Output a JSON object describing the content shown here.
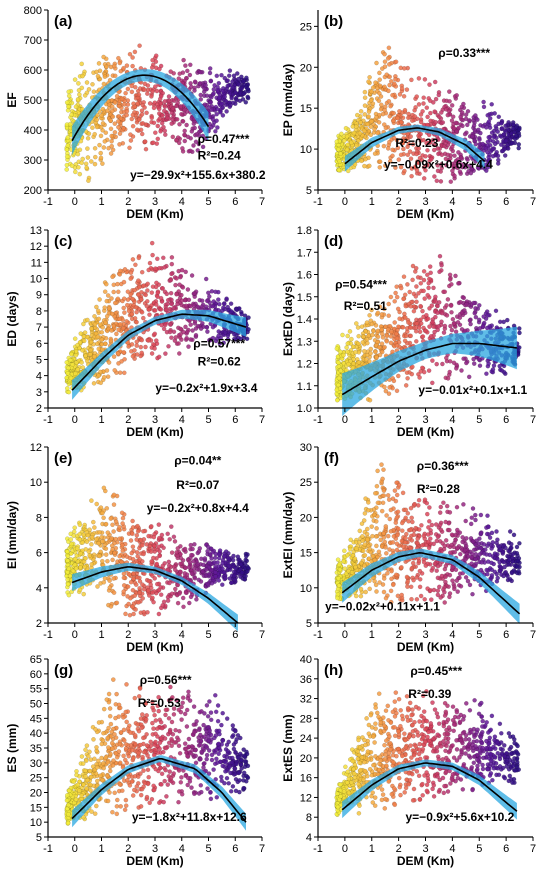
{
  "figure": {
    "colors": {
      "scatter_gradient": [
        "#f2ee3a",
        "#f6b53e",
        "#f07a4a",
        "#d9445c",
        "#a0287c",
        "#5a189a",
        "#2a0f80"
      ],
      "ci_band": "#2aa7e0",
      "fit_line": "#000000",
      "axis": "#000000"
    }
  },
  "chart_data": [
    {
      "type": "scatter",
      "panel_label": "(a)",
      "xlabel": "DEM (Km)",
      "ylabel": "EF",
      "xlim": [
        -1,
        7
      ],
      "ylim": [
        200,
        800
      ],
      "xticks": [
        -1,
        0,
        1,
        2,
        3,
        4,
        5,
        6,
        7
      ],
      "yticks": [
        200,
        300,
        400,
        500,
        600,
        700,
        800
      ],
      "annotations": [
        "ρ=0.47***",
        "R²=0.24",
        "y=−29.9x²+155.6x+380.2"
      ],
      "fit": {
        "a": -29.9,
        "b": 155.6,
        "c": 380.2,
        "x_range": [
          -0.1,
          5.0
        ],
        "band_half_width": 20
      },
      "scatter_summary": {
        "x_range": [
          -0.3,
          6.5
        ],
        "lower_envelope": [
          [
            -0.3,
            260
          ],
          [
            0.5,
            220
          ],
          [
            1.5,
            320
          ],
          [
            3,
            330
          ],
          [
            4.5,
            300
          ],
          [
            6,
            480
          ]
        ],
        "upper_envelope": [
          [
            -0.3,
            560
          ],
          [
            0.5,
            660
          ],
          [
            1.5,
            690
          ],
          [
            2.5,
            690
          ],
          [
            4,
            650
          ],
          [
            5,
            620
          ],
          [
            6.5,
            590
          ]
        ]
      }
    },
    {
      "type": "scatter",
      "panel_label": "(b)",
      "xlabel": "DEM (Km)",
      "ylabel": "EP (mm/day)",
      "xlim": [
        -1,
        7
      ],
      "ylim": [
        5,
        27
      ],
      "xticks": [
        -1,
        0,
        1,
        2,
        3,
        4,
        5,
        6,
        7
      ],
      "yticks": [
        5,
        10,
        15,
        20,
        25
      ],
      "annotations": [
        "ρ=0.33***",
        "R²=0.23",
        "y=−0.09x²+0.6x+4.4"
      ],
      "fit": {
        "curve_points": [
          [
            0,
            8.2
          ],
          [
            1,
            10.8
          ],
          [
            2,
            12.3
          ],
          [
            2.7,
            12.6
          ],
          [
            3.5,
            12.1
          ],
          [
            4.5,
            10.5
          ],
          [
            5.2,
            8.5
          ]
        ],
        "band_half_width": 0.4
      },
      "scatter_summary": {
        "x_range": [
          -0.3,
          6.5
        ],
        "lower_envelope": [
          [
            -0.3,
            7
          ],
          [
            1,
            7
          ],
          [
            2,
            5.5
          ],
          [
            3,
            5.5
          ],
          [
            4,
            5.5
          ],
          [
            5,
            6
          ],
          [
            6.4,
            10
          ]
        ],
        "upper_envelope": [
          [
            -0.3,
            12
          ],
          [
            0.5,
            15
          ],
          [
            1.5,
            26
          ],
          [
            2.5,
            20
          ],
          [
            4,
            18
          ],
          [
            5.5,
            16
          ],
          [
            6.5,
            13
          ]
        ]
      }
    },
    {
      "type": "scatter",
      "panel_label": "(c)",
      "xlabel": "DEM (Km)",
      "ylabel": "ED (days)",
      "xlim": [
        -1,
        7
      ],
      "ylim": [
        2,
        13
      ],
      "xticks": [
        -1,
        0,
        1,
        2,
        3,
        4,
        5,
        6,
        7
      ],
      "yticks": [
        2,
        3,
        4,
        5,
        6,
        7,
        8,
        9,
        10,
        11,
        12,
        13
      ],
      "annotations": [
        "ρ=0.57***",
        "R²=0.62",
        "y=−0.2x²+1.9x+3.4"
      ],
      "fit": {
        "curve_points": [
          [
            -0.1,
            3.1
          ],
          [
            1,
            5.0
          ],
          [
            2,
            6.5
          ],
          [
            3,
            7.4
          ],
          [
            4,
            7.8
          ],
          [
            5,
            7.7
          ],
          [
            6.4,
            7.0
          ]
        ],
        "band_half_width": 0.25
      },
      "scatter_summary": {
        "x_range": [
          -0.3,
          6.5
        ],
        "lower_envelope": [
          [
            -0.3,
            2.6
          ],
          [
            0.5,
            3
          ],
          [
            1.5,
            3.5
          ],
          [
            3,
            5
          ],
          [
            4.5,
            5.5
          ],
          [
            6,
            6
          ]
        ],
        "upper_envelope": [
          [
            -0.3,
            5.5
          ],
          [
            0.5,
            8
          ],
          [
            1.5,
            11
          ],
          [
            2.8,
            12.7
          ],
          [
            4,
            11
          ],
          [
            5,
            10
          ],
          [
            6.4,
            8
          ]
        ]
      }
    },
    {
      "type": "scatter",
      "panel_label": "(d)",
      "xlabel": "DEM (Km)",
      "ylabel": "ExtED (days)",
      "xlim": [
        -1,
        7
      ],
      "ylim": [
        1.0,
        1.8
      ],
      "xticks": [
        -1,
        0,
        1,
        2,
        3,
        4,
        5,
        6,
        7
      ],
      "yticks": [
        1.0,
        1.1,
        1.2,
        1.3,
        1.4,
        1.5,
        1.6,
        1.7,
        1.8
      ],
      "annotations": [
        "ρ=0.54***",
        "R²=0.51",
        "y=−0.01x²+0.1x+1.1"
      ],
      "fit": {
        "curve_points": [
          [
            -0.1,
            1.06
          ],
          [
            1,
            1.14
          ],
          [
            2,
            1.21
          ],
          [
            3,
            1.26
          ],
          [
            4,
            1.29
          ],
          [
            5,
            1.29
          ],
          [
            6.4,
            1.27
          ]
        ],
        "band_half_width": 0.04
      },
      "scatter_summary": {
        "x_range": [
          -0.3,
          6.5
        ],
        "lower_envelope": [
          [
            -0.3,
            1.0
          ],
          [
            1,
            1.02
          ],
          [
            2,
            1.05
          ],
          [
            3,
            1.08
          ],
          [
            4.5,
            1.1
          ],
          [
            6,
            1.15
          ]
        ],
        "upper_envelope": [
          [
            -0.3,
            1.3
          ],
          [
            0.5,
            1.42
          ],
          [
            1.5,
            1.5
          ],
          [
            2.5,
            1.7
          ],
          [
            3.5,
            1.75
          ],
          [
            4.5,
            1.6
          ],
          [
            6.4,
            1.38
          ]
        ]
      }
    },
    {
      "type": "scatter",
      "panel_label": "(e)",
      "xlabel": "DEM (Km)",
      "ylabel": "EI (mm/day)",
      "xlim": [
        -1,
        7
      ],
      "ylim": [
        2,
        12
      ],
      "xticks": [
        -1,
        0,
        1,
        2,
        3,
        4,
        5,
        6,
        7
      ],
      "yticks": [
        2,
        4,
        6,
        8,
        10,
        12
      ],
      "annotations": [
        "ρ=0.04**",
        "R²=0.07",
        "y=−0.2x²+0.8x+4.4"
      ],
      "fit": {
        "curve_points": [
          [
            -0.1,
            4.3
          ],
          [
            1,
            4.9
          ],
          [
            2,
            5.2
          ],
          [
            3,
            5.0
          ],
          [
            4,
            4.4
          ],
          [
            5,
            3.4
          ],
          [
            6.1,
            2.0
          ]
        ],
        "band_half_width": 0.2
      },
      "scatter_summary": {
        "x_range": [
          -0.3,
          6.5
        ],
        "lower_envelope": [
          [
            -0.3,
            3.5
          ],
          [
            1,
            3
          ],
          [
            2,
            2.3
          ],
          [
            3,
            2.3
          ],
          [
            4,
            2.8
          ],
          [
            5,
            3.5
          ],
          [
            6.5,
            4.5
          ]
        ],
        "upper_envelope": [
          [
            -0.3,
            7
          ],
          [
            0.5,
            9
          ],
          [
            1,
            10.5
          ],
          [
            2,
            9
          ],
          [
            3,
            8
          ],
          [
            4.5,
            7
          ],
          [
            6.5,
            6
          ]
        ]
      }
    },
    {
      "type": "scatter",
      "panel_label": "(f)",
      "xlabel": "DEM (Km)",
      "ylabel": "ExtEI (mm/day)",
      "xlim": [
        -1,
        7
      ],
      "ylim": [
        5,
        30
      ],
      "xticks": [
        -1,
        0,
        1,
        2,
        3,
        4,
        5,
        6,
        7
      ],
      "yticks": [
        5,
        10,
        15,
        20,
        25,
        30
      ],
      "annotations": [
        "ρ=0.36***",
        "R²=0.28",
        "y=−0.02x²+0.11x+1.1"
      ],
      "fit": {
        "curve_points": [
          [
            -0.1,
            9.3
          ],
          [
            1,
            12.5
          ],
          [
            2,
            14.4
          ],
          [
            2.8,
            15.0
          ],
          [
            4,
            14.0
          ],
          [
            5,
            11.5
          ],
          [
            6.5,
            6.3
          ]
        ],
        "band_half_width": 0.6
      },
      "scatter_summary": {
        "x_range": [
          -0.3,
          6.5
        ],
        "lower_envelope": [
          [
            -0.3,
            8
          ],
          [
            1,
            7.5
          ],
          [
            2,
            7
          ],
          [
            3,
            7
          ],
          [
            4,
            7.5
          ],
          [
            5,
            8.5
          ],
          [
            6.4,
            11
          ]
        ],
        "upper_envelope": [
          [
            -0.3,
            14
          ],
          [
            0.5,
            20
          ],
          [
            1.3,
            29
          ],
          [
            2.5,
            26
          ],
          [
            3.5,
            24
          ],
          [
            4.5,
            23
          ],
          [
            6.5,
            17
          ]
        ]
      }
    },
    {
      "type": "scatter",
      "panel_label": "(g)",
      "xlabel": "DEM (Km)",
      "ylabel": "ES (mm)",
      "xlim": [
        -1,
        7
      ],
      "ylim": [
        5,
        65
      ],
      "xticks": [
        -1,
        0,
        1,
        2,
        3,
        4,
        5,
        6,
        7
      ],
      "yticks": [
        5,
        10,
        15,
        20,
        25,
        30,
        35,
        40,
        45,
        50,
        55,
        60,
        65
      ],
      "annotations": [
        "ρ=0.56***",
        "R²=0.53",
        "y=−1.8x²+11.8x+12.6"
      ],
      "fit": {
        "curve_points": [
          [
            -0.1,
            11.2
          ],
          [
            1,
            21
          ],
          [
            2,
            27.8
          ],
          [
            3.2,
            31.5
          ],
          [
            4.5,
            28
          ],
          [
            5.5,
            20
          ],
          [
            6.4,
            10
          ]
        ],
        "band_half_width": 1.2
      },
      "scatter_summary": {
        "x_range": [
          -0.3,
          6.5
        ],
        "lower_envelope": [
          [
            -0.3,
            9
          ],
          [
            1,
            11
          ],
          [
            2,
            12
          ],
          [
            3,
            14
          ],
          [
            4.5,
            15
          ],
          [
            6,
            18
          ]
        ],
        "upper_envelope": [
          [
            -0.3,
            20
          ],
          [
            0.5,
            40
          ],
          [
            1.5,
            60
          ],
          [
            2.5,
            58
          ],
          [
            4,
            57
          ],
          [
            5,
            56
          ],
          [
            6.4,
            40
          ]
        ]
      }
    },
    {
      "type": "scatter",
      "panel_label": "(h)",
      "xlabel": "DEM (Km)",
      "ylabel": "ExtES (mm)",
      "xlim": [
        -1,
        7
      ],
      "ylim": [
        4,
        40
      ],
      "xticks": [
        -1,
        0,
        1,
        2,
        3,
        4,
        5,
        6,
        7
      ],
      "yticks": [
        4,
        8,
        12,
        16,
        20,
        24,
        28,
        32,
        36,
        40
      ],
      "annotations": [
        "ρ=0.45***",
        "R²=0.39",
        "y=−0.9x²+5.6x+10.2"
      ],
      "fit": {
        "curve_points": [
          [
            -0.1,
            9.5
          ],
          [
            1,
            14.5
          ],
          [
            2,
            17.8
          ],
          [
            3,
            19
          ],
          [
            4,
            18.3
          ],
          [
            5,
            15.5
          ],
          [
            6.4,
            9.2
          ]
        ],
        "band_half_width": 0.7
      },
      "scatter_summary": {
        "x_range": [
          -0.3,
          6.5
        ],
        "lower_envelope": [
          [
            -0.3,
            8
          ],
          [
            1,
            9
          ],
          [
            2,
            10
          ],
          [
            3,
            11
          ],
          [
            4.5,
            12
          ],
          [
            6,
            14
          ]
        ],
        "upper_envelope": [
          [
            -0.3,
            14
          ],
          [
            0.5,
            26
          ],
          [
            1.5,
            36
          ],
          [
            2.5,
            35
          ],
          [
            3.5,
            34
          ],
          [
            5,
            33
          ],
          [
            6.4,
            25
          ]
        ]
      }
    }
  ]
}
